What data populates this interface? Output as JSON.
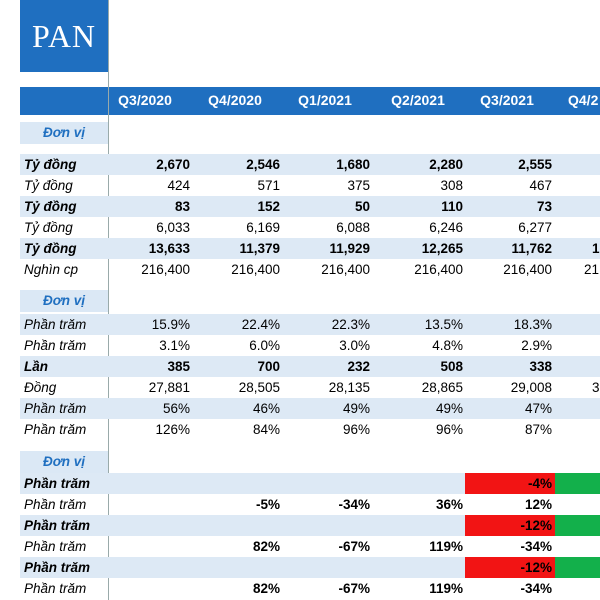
{
  "logo": "PAN",
  "header": {
    "columns": [
      "Q3/2020",
      "Q4/2020",
      "Q1/2021",
      "Q2/2021",
      "Q3/2021"
    ],
    "cut_column": "Q4/2"
  },
  "sections": [
    {
      "unit_label": "Đơn vị",
      "rows": [
        {
          "unit": "Tỷ đồng",
          "bold": true,
          "values": [
            "2,670",
            "2,546",
            "1,680",
            "2,280",
            "2,555"
          ]
        },
        {
          "unit": "Tỷ đồng",
          "bold": false,
          "values": [
            "424",
            "571",
            "375",
            "308",
            "467"
          ]
        },
        {
          "unit": "Tỷ đồng",
          "bold": true,
          "values": [
            "83",
            "152",
            "50",
            "110",
            "73"
          ]
        },
        {
          "unit": "Tỷ đồng",
          "bold": false,
          "values": [
            "6,033",
            "6,169",
            "6,088",
            "6,246",
            "6,277"
          ]
        },
        {
          "unit": "Tỷ đồng",
          "bold": true,
          "values": [
            "13,633",
            "11,379",
            "11,929",
            "12,265",
            "11,762"
          ],
          "cut": "1"
        },
        {
          "unit": "Nghìn cp",
          "bold": false,
          "values": [
            "216,400",
            "216,400",
            "216,400",
            "216,400",
            "216,400"
          ],
          "cut": "21"
        }
      ]
    },
    {
      "unit_label": "Đơn vị",
      "rows": [
        {
          "unit": "Phần trăm",
          "bold": false,
          "values": [
            "15.9%",
            "22.4%",
            "22.3%",
            "13.5%",
            "18.3%"
          ]
        },
        {
          "unit": "Phần trăm",
          "bold": false,
          "values": [
            "3.1%",
            "6.0%",
            "3.0%",
            "4.8%",
            "2.9%"
          ]
        },
        {
          "unit": "Lần",
          "bold": true,
          "values": [
            "385",
            "700",
            "232",
            "508",
            "338"
          ]
        },
        {
          "unit": "Đồng",
          "bold": false,
          "values": [
            "27,881",
            "28,505",
            "28,135",
            "28,865",
            "29,008"
          ],
          "cut": "3"
        },
        {
          "unit": "Phần trăm",
          "bold": false,
          "values": [
            "56%",
            "46%",
            "49%",
            "49%",
            "47%"
          ]
        },
        {
          "unit": "Phần trăm",
          "bold": false,
          "values": [
            "126%",
            "84%",
            "96%",
            "96%",
            "87%"
          ]
        }
      ]
    },
    {
      "unit_label": "Đơn vị",
      "rows": [
        {
          "unit": "Phần trăm",
          "bold": true,
          "values": [
            null,
            null,
            null,
            null,
            "-4%"
          ],
          "highlight": true
        },
        {
          "unit": "Phần trăm",
          "bold": false,
          "bold_values": true,
          "values": [
            null,
            "-5%",
            "-34%",
            "36%",
            "12%"
          ]
        },
        {
          "unit": "Phần trăm",
          "bold": true,
          "values": [
            null,
            null,
            null,
            null,
            "-12%"
          ],
          "highlight": true
        },
        {
          "unit": "Phần trăm",
          "bold": false,
          "bold_values": true,
          "values": [
            null,
            "82%",
            "-67%",
            "119%",
            "-34%"
          ]
        },
        {
          "unit": "Phần trăm",
          "bold": true,
          "values": [
            null,
            null,
            null,
            null,
            "-12%"
          ],
          "highlight": true
        },
        {
          "unit": "Phần trăm",
          "bold": false,
          "bold_values": true,
          "values": [
            null,
            "82%",
            "-67%",
            "119%",
            "-34%"
          ]
        }
      ]
    }
  ]
}
